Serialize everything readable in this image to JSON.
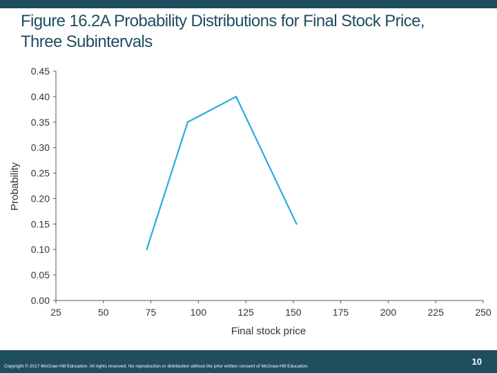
{
  "slide": {
    "title_line1": "Figure 16.2A Probability Distributions for Final Stock Price,",
    "title_line2": "Three Subintervals",
    "copyright": "Copyright © 2017 McGraw-Hill Education. All rights reserved. No reproduction or distribution without the prior written consent of McGraw-Hill Education.",
    "page_number": "10"
  },
  "colors": {
    "accent": "#1f4e5f",
    "line": "#29abe2",
    "axis": "#555555"
  },
  "chart_data": {
    "type": "line",
    "title": "",
    "xlabel": "Final stock price",
    "ylabel": "Probability",
    "xlim": [
      25,
      250
    ],
    "ylim": [
      0,
      0.45
    ],
    "x_ticks": [
      25,
      50,
      75,
      100,
      125,
      150,
      175,
      200,
      225,
      250
    ],
    "y_ticks": [
      0,
      0.05,
      0.1,
      0.15,
      0.2,
      0.25,
      0.3,
      0.35,
      0.4,
      0.45
    ],
    "x_tick_labels": [
      "25",
      "50",
      "75",
      "100",
      "125",
      "150",
      "175",
      "200",
      "225",
      "250"
    ],
    "y_tick_labels": [
      "0.00",
      "0.05",
      "0.10",
      "0.15",
      "0.20",
      "0.25",
      "0.30",
      "0.35",
      "0.40",
      "0.45"
    ],
    "series": [
      {
        "x": [
          72.8,
          94.4,
          119.9,
          151.7
        ],
        "y": [
          0.1,
          0.35,
          0.4,
          0.15
        ]
      }
    ],
    "grid": false,
    "legend": "none"
  }
}
